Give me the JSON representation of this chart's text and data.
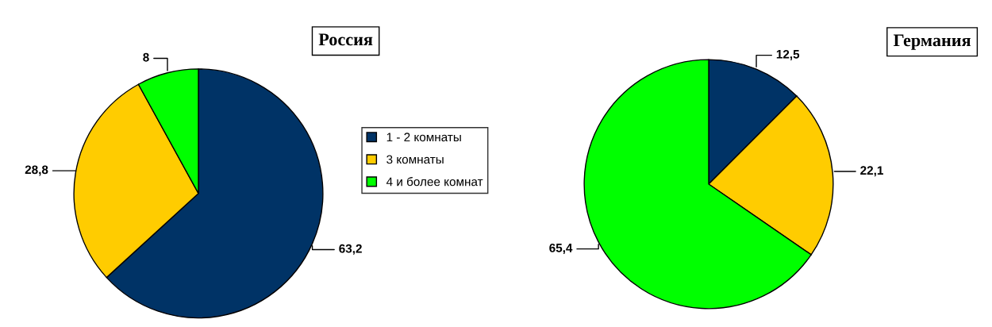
{
  "chart_data": [
    {
      "type": "pie",
      "title": "Россия",
      "categories": [
        "1 - 2 комнаты",
        "3 комнаты",
        "4 и более комнат"
      ],
      "values": [
        63.2,
        28.8,
        8
      ],
      "colors": [
        "#003366",
        "#ffcc00",
        "#00ff00"
      ],
      "value_labels": [
        "63,2",
        "28,8",
        "8"
      ],
      "legend": "right"
    },
    {
      "type": "pie",
      "title": "Германия",
      "values": [
        12.5,
        22.1,
        65.4
      ],
      "colors": [
        "#003366",
        "#ffcc00",
        "#00ff00"
      ],
      "value_labels": [
        "12,5",
        "22,1",
        "65,4"
      ]
    }
  ]
}
